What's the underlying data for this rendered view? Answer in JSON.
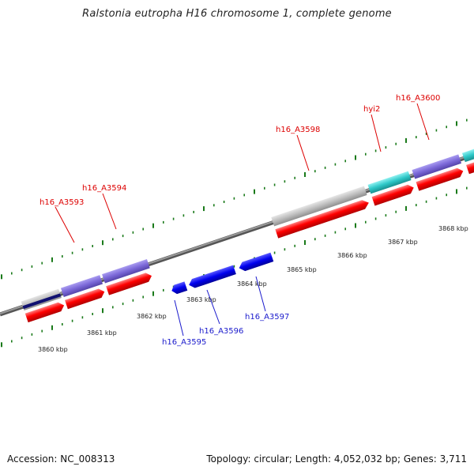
{
  "title": "Ralstonia eutropha H16 chromosome 1, complete genome",
  "footer": {
    "accession": "Accession: NC_008313",
    "info": "Topology: circular; Length: 4,052,032 bp; Genes: 3,711"
  },
  "scale_labels": [
    "3860 kbp",
    "3861 kbp",
    "3862 kbp",
    "3863 kbp",
    "3864 kbp",
    "3865 kbp",
    "3866 kbp",
    "3867 kbp",
    "3868 kbp"
  ],
  "gene_labels_forward": [
    "h16_A3593",
    "h16_A3594",
    "h16_A3598",
    "hyi2",
    "h16_A3600"
  ],
  "gene_labels_reverse": [
    "h16_A3595",
    "h16_A3596",
    "h16_A3597"
  ],
  "colors": {
    "cds": "#ff0000",
    "gene_forward": "#7b68d8",
    "gene_reverse": "#0000ee",
    "gene_grey": "#bdbdbd",
    "gene_cyan": "#2ec8c8",
    "label_forward": "#dd0000",
    "label_reverse": "#1a1acc",
    "ticks": "#1a7a1a",
    "backbone": "#777777"
  }
}
